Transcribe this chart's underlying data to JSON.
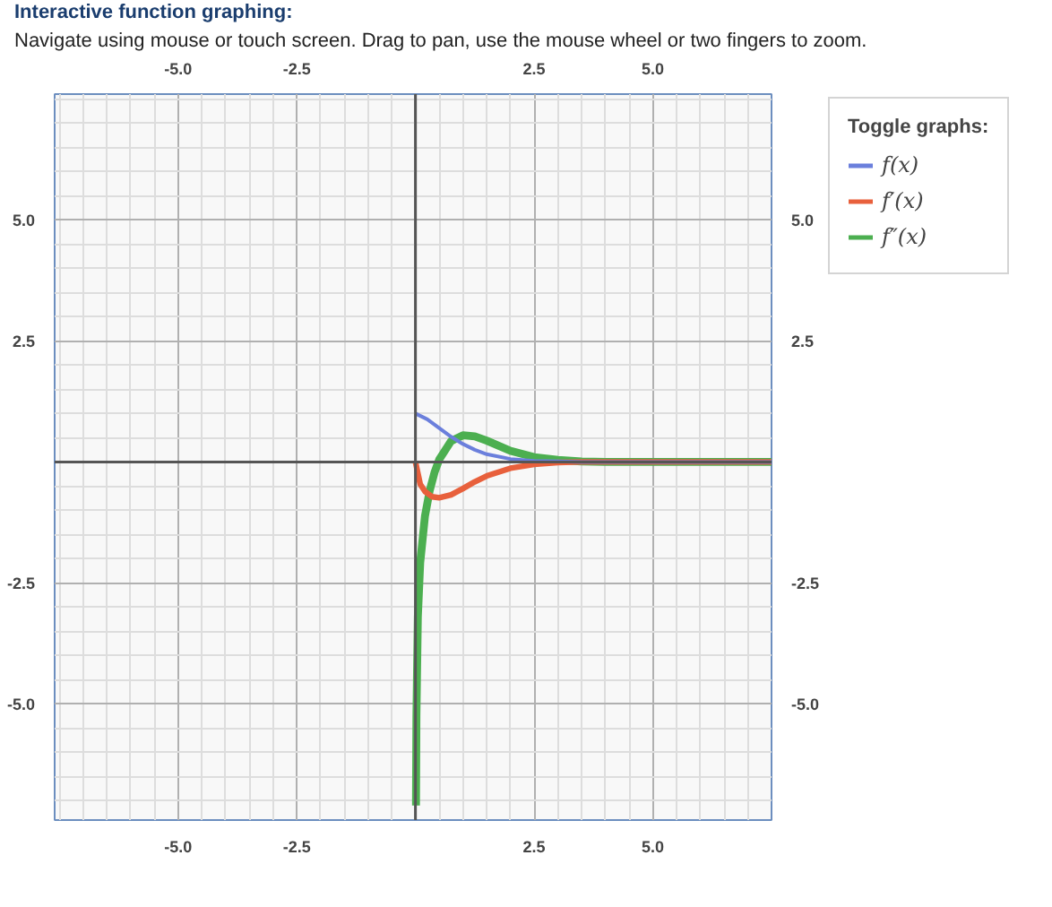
{
  "chart_data": {
    "type": "line",
    "title": "Interactive function graphing:",
    "subtitle": "Navigate using mouse or touch screen. Drag to pan, use the mouse wheel or two fingers to zoom.",
    "legend_title": "Toggle graphs:",
    "legend": "top right",
    "grid": true,
    "marker": "none",
    "line_style": "solid",
    "xlim": [
      -7.6,
      7.5
    ],
    "ylim": [
      -7.4,
      7.6
    ],
    "x2lim": [
      -7.6,
      7.5
    ],
    "y2lim": [
      -7.4,
      7.6
    ],
    "xticks": [
      {
        "value": -5,
        "label": "-5.0"
      },
      {
        "value": -2.5,
        "label": "-2.5"
      },
      {
        "value": 2.5,
        "label": "2.5"
      },
      {
        "value": 5,
        "label": "5.0"
      }
    ],
    "x2ticks": [
      {
        "value": -5,
        "label": "-5.0"
      },
      {
        "value": -2.5,
        "label": "-2.5"
      },
      {
        "value": 2.5,
        "label": "2.5"
      },
      {
        "value": 5,
        "label": "5.0"
      }
    ],
    "yticks": [
      {
        "value": -5,
        "label": "-5.0"
      },
      {
        "value": -2.5,
        "label": "-2.5"
      },
      {
        "value": 2.5,
        "label": "2.5"
      },
      {
        "value": 5,
        "label": "5.0"
      }
    ],
    "y2ticks": [
      {
        "value": -5,
        "label": "-5.0"
      },
      {
        "value": -2.5,
        "label": "-2.5"
      },
      {
        "value": 2.5,
        "label": "2.5"
      },
      {
        "value": 5,
        "label": "5.0"
      }
    ],
    "series": [
      {
        "name": "f″(x)",
        "color": "#4caf50",
        "x": [
          0.011,
          0.02,
          0.05,
          0.1,
          0.2,
          0.3,
          0.4,
          0.5,
          0.75,
          1,
          1.25,
          1.5,
          2,
          2.5,
          3,
          3.5,
          4,
          7.5
        ],
        "values": [
          -7.1,
          -5.26,
          -3.2,
          -2.08,
          -1.12,
          -0.59,
          -0.22,
          0.05,
          0.43,
          0.55,
          0.53,
          0.44,
          0.23,
          0.1,
          0.04,
          0.01,
          0,
          0
        ]
      },
      {
        "name": "f′(x)",
        "color": "#e8603c",
        "x": [
          0,
          0.1,
          0.2,
          0.35,
          0.5,
          0.75,
          1,
          1.25,
          1.5,
          2,
          2.5,
          3,
          3.5,
          7.5
        ],
        "values": [
          0,
          -0.46,
          -0.61,
          -0.72,
          -0.74,
          -0.68,
          -0.55,
          -0.41,
          -0.29,
          -0.13,
          -0.05,
          -0.01,
          0,
          0
        ]
      },
      {
        "name": "f(x)",
        "color": "#6b7fdc",
        "x": [
          0,
          0.25,
          0.5,
          0.75,
          1,
          1.25,
          1.5,
          2,
          2.5,
          3,
          3.5,
          7.5
        ],
        "values": [
          1,
          0.88,
          0.7,
          0.52,
          0.37,
          0.25,
          0.16,
          0.06,
          0.02,
          0.01,
          0,
          0
        ]
      }
    ]
  }
}
